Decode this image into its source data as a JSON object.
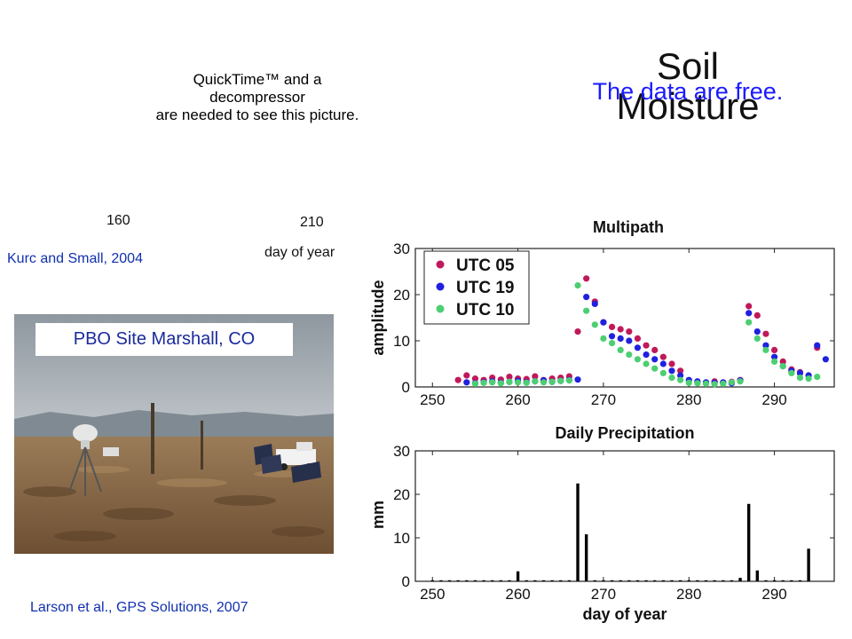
{
  "quicktime": {
    "lines": [
      "QuickTime™ and a",
      "decompressor",
      "are needed to see this picture."
    ]
  },
  "title_lines": [
    "Soil",
    "Moisture"
  ],
  "free_text": "The data are free.",
  "left_axis": {
    "ticks": [
      "160",
      "210"
    ],
    "xlabel": "day of year"
  },
  "citation_top": "Kurc and Small, 2004",
  "citation_bottom": "Larson et al., GPS Solutions, 2007",
  "site_label": "PBO Site Marshall, CO",
  "colors": {
    "utc05": "#c0185a",
    "utc19": "#2020e0",
    "utc10": "#4ccf72",
    "accent_blue": "#1a1aff",
    "citation_blue": "#1030b0"
  },
  "chart_data": [
    {
      "type": "scatter",
      "title": "Multipath",
      "xlabel": "",
      "ylabel": "amplitude",
      "xlim": [
        248,
        297
      ],
      "ylim": [
        0,
        30
      ],
      "xticks": [
        250,
        260,
        270,
        280,
        290
      ],
      "yticks": [
        0,
        10,
        20,
        30
      ],
      "legend": "top-left",
      "series": [
        {
          "name": "UTC 05",
          "color": "#c0185a",
          "x": [
            253,
            254,
            255,
            256,
            257,
            258,
            259,
            260,
            261,
            262,
            263,
            264,
            265,
            266,
            267,
            268,
            269,
            270,
            271,
            272,
            273,
            274,
            275,
            276,
            277,
            278,
            279,
            281,
            282,
            283,
            284,
            285,
            286,
            287,
            288,
            289,
            290,
            291,
            292,
            293,
            294,
            295
          ],
          "y": [
            1.5,
            2.5,
            1.8,
            1.5,
            2.0,
            1.6,
            2.2,
            1.8,
            1.7,
            2.3,
            1.5,
            1.8,
            2.0,
            2.3,
            12.0,
            23.5,
            18.5,
            14.0,
            13.0,
            12.5,
            12.0,
            10.5,
            9.0,
            8.0,
            6.5,
            5.0,
            3.5,
            1.0,
            0.8,
            1.2,
            0.9,
            1.1,
            1.5,
            17.5,
            15.5,
            11.5,
            8.0,
            5.5,
            3.8,
            3.2,
            2.5,
            8.5
          ]
        },
        {
          "name": "UTC 19",
          "color": "#2020e0",
          "x": [
            254,
            255,
            256,
            257,
            258,
            259,
            260,
            261,
            262,
            263,
            264,
            265,
            266,
            267,
            268,
            269,
            270,
            271,
            272,
            273,
            274,
            275,
            276,
            277,
            278,
            279,
            280,
            281,
            282,
            283,
            284,
            285,
            286,
            287,
            288,
            289,
            290,
            291,
            292,
            293,
            294,
            295,
            296
          ],
          "y": [
            1.0,
            0.8,
            1.0,
            1.2,
            0.9,
            1.1,
            1.3,
            1.0,
            1.2,
            1.4,
            1.1,
            1.3,
            1.5,
            1.6,
            19.5,
            18.0,
            14.0,
            11.0,
            10.5,
            10.0,
            8.5,
            7.0,
            6.0,
            5.0,
            3.5,
            2.5,
            1.5,
            1.2,
            1.0,
            0.9,
            1.0,
            0.8,
            1.4,
            16.0,
            12.0,
            9.0,
            6.5,
            4.5,
            3.5,
            3.0,
            2.5,
            9.0,
            6.0
          ]
        },
        {
          "name": "UTC 10",
          "color": "#4ccf72",
          "x": [
            255,
            256,
            257,
            258,
            259,
            260,
            261,
            262,
            263,
            264,
            265,
            266,
            267,
            268,
            269,
            270,
            271,
            272,
            273,
            274,
            275,
            276,
            277,
            278,
            279,
            280,
            281,
            282,
            283,
            284,
            285,
            286,
            287,
            288,
            289,
            290,
            291,
            292,
            293,
            294,
            295
          ],
          "y": [
            0.7,
            0.9,
            1.0,
            0.8,
            1.1,
            1.0,
            0.9,
            1.2,
            1.0,
            1.1,
            1.3,
            1.4,
            22.0,
            16.5,
            13.5,
            10.5,
            9.5,
            8.0,
            7.0,
            6.0,
            5.0,
            4.0,
            3.0,
            2.0,
            1.5,
            0.9,
            0.8,
            0.7,
            0.6,
            0.7,
            1.0,
            1.2,
            14.0,
            10.5,
            8.0,
            5.5,
            4.5,
            3.0,
            2.0,
            1.8,
            2.2
          ]
        }
      ]
    },
    {
      "type": "bar",
      "title": "Daily Precipitation",
      "xlabel": "day of year",
      "ylabel": "mm",
      "xlim": [
        248,
        297
      ],
      "ylim": [
        0,
        30
      ],
      "xticks": [
        250,
        260,
        270,
        280,
        290
      ],
      "yticks": [
        0,
        10,
        20,
        30
      ],
      "x": [
        250,
        251,
        252,
        253,
        254,
        255,
        256,
        257,
        258,
        259,
        260,
        261,
        262,
        263,
        264,
        265,
        266,
        267,
        268,
        269,
        270,
        271,
        272,
        273,
        274,
        275,
        276,
        277,
        278,
        279,
        280,
        281,
        282,
        283,
        284,
        285,
        286,
        287,
        288,
        289,
        290,
        291,
        292,
        293,
        294
      ],
      "values": [
        0.1,
        0.1,
        0.1,
        0.1,
        0.1,
        0.1,
        0.1,
        0.1,
        0.1,
        0.1,
        2.3,
        0.1,
        0.1,
        0.1,
        0.1,
        0.1,
        0.1,
        22.5,
        10.8,
        0.1,
        0.1,
        0.1,
        0.1,
        0.1,
        0.1,
        0.1,
        0.1,
        0.1,
        0.1,
        0.1,
        0.1,
        0.1,
        0.1,
        0.1,
        0.1,
        0.1,
        0.8,
        17.8,
        2.5,
        0.1,
        0.1,
        0.1,
        0.1,
        0.1,
        7.5
      ]
    }
  ]
}
